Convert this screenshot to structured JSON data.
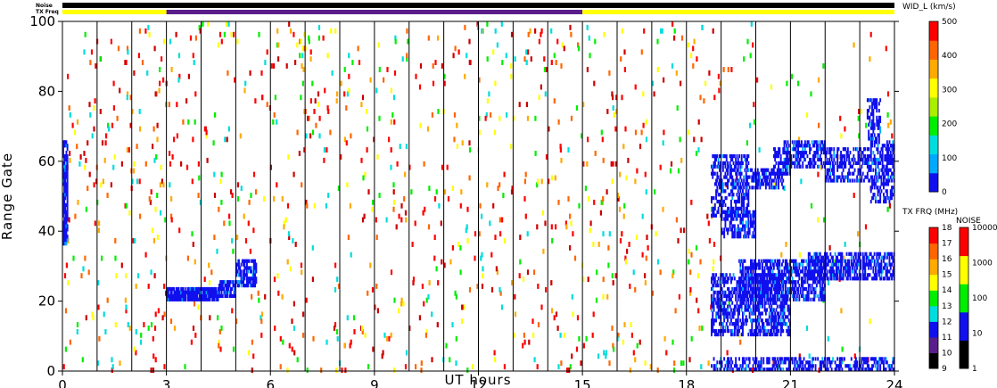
{
  "chart_data": {
    "type": "heatmap",
    "title": "",
    "xlabel": "UT hours",
    "ylabel": "Range Gate",
    "xlim": [
      0,
      24
    ],
    "ylim": [
      0,
      100
    ],
    "x_ticks": [
      "0",
      "3",
      "6",
      "9",
      "12",
      "15",
      "18",
      "21",
      "24"
    ],
    "y_ticks": [
      "0",
      "20",
      "40",
      "60",
      "80",
      "100"
    ],
    "grid_hours": [
      1,
      2,
      3,
      4,
      5,
      6,
      7,
      8,
      9,
      10,
      11,
      12,
      13,
      14,
      15,
      16,
      17,
      18,
      19,
      20,
      21,
      22,
      23
    ],
    "top_bars": {
      "noise_label": "Noise",
      "txfreq_label": "TX Freq",
      "noise_color": "#000000",
      "txfreq_segments": [
        {
          "start": 0,
          "end": 3,
          "color": "#ffff00"
        },
        {
          "start": 3,
          "end": 15,
          "color": "#5a1e8c"
        },
        {
          "start": 15,
          "end": 24,
          "color": "#ffff00"
        }
      ]
    },
    "scatter_colors": [
      "#ff0000",
      "#ff0000",
      "#ff6600",
      "#ffaa00",
      "#ffff00",
      "#00ee00",
      "#00dddd",
      "#cc0000"
    ],
    "echo_color": "#1010ee",
    "echo_regions": [
      {
        "x0": 3.0,
        "x1": 4.5,
        "y0": 20,
        "y1": 24,
        "density": 0.9
      },
      {
        "x0": 4.5,
        "x1": 5.0,
        "y0": 21,
        "y1": 26,
        "density": 0.8
      },
      {
        "x0": 5.0,
        "x1": 5.6,
        "y0": 24,
        "y1": 32,
        "density": 0.7
      },
      {
        "x0": 18.7,
        "x1": 19.8,
        "y0": 44,
        "y1": 62,
        "density": 0.5
      },
      {
        "x0": 19.0,
        "x1": 20.0,
        "y0": 38,
        "y1": 46,
        "density": 0.6
      },
      {
        "x0": 19.7,
        "x1": 20.8,
        "y0": 52,
        "y1": 58,
        "density": 0.6
      },
      {
        "x0": 20.5,
        "x1": 21.0,
        "y0": 56,
        "y1": 64,
        "density": 0.4
      },
      {
        "x0": 20.8,
        "x1": 22.0,
        "y0": 58,
        "y1": 66,
        "density": 0.55
      },
      {
        "x0": 22.0,
        "x1": 23.3,
        "y0": 54,
        "y1": 64,
        "density": 0.5
      },
      {
        "x0": 23.3,
        "x1": 24.0,
        "y0": 48,
        "y1": 66,
        "density": 0.55
      },
      {
        "x0": 23.2,
        "x1": 23.6,
        "y0": 66,
        "y1": 78,
        "density": 0.5
      },
      {
        "x0": 18.7,
        "x1": 21.0,
        "y0": 10,
        "y1": 28,
        "density": 0.55
      },
      {
        "x0": 19.5,
        "x1": 22.0,
        "y0": 20,
        "y1": 32,
        "density": 0.6
      },
      {
        "x0": 21.5,
        "x1": 24.0,
        "y0": 26,
        "y1": 34,
        "density": 0.6
      },
      {
        "x0": 18.7,
        "x1": 24.0,
        "y0": 0,
        "y1": 4,
        "density": 0.5
      },
      {
        "x0": 0.0,
        "x1": 0.15,
        "y0": 36,
        "y1": 66,
        "density": 0.9
      }
    ],
    "colorbars": {
      "width": {
        "label": "WID_L (km/s)",
        "ticks": [
          "0",
          "100",
          "200",
          "300",
          "400",
          "500"
        ],
        "colors": [
          "#1010ee",
          "#00aaff",
          "#00dddd",
          "#00ee00",
          "#aaee00",
          "#ffff00",
          "#ffaa00",
          "#ff6600",
          "#ff0000"
        ]
      },
      "txfreq": {
        "label": "TX FRQ (MHz)",
        "ticks": [
          "9",
          "10",
          "11",
          "12",
          "13",
          "14",
          "15",
          "16",
          "17",
          "18"
        ],
        "colors": [
          "#000000",
          "#5a1e8c",
          "#1010ee",
          "#00dddd",
          "#00ee00",
          "#ffff00",
          "#ffaa00",
          "#ff6600",
          "#ff0000"
        ]
      },
      "noise": {
        "label": "NOISE",
        "ticks": [
          "1",
          "10",
          "100",
          "1000",
          "10000"
        ],
        "colors": [
          "#000000",
          "#1010ee",
          "#00ee00",
          "#ffff00",
          "#ff0000"
        ]
      }
    }
  }
}
